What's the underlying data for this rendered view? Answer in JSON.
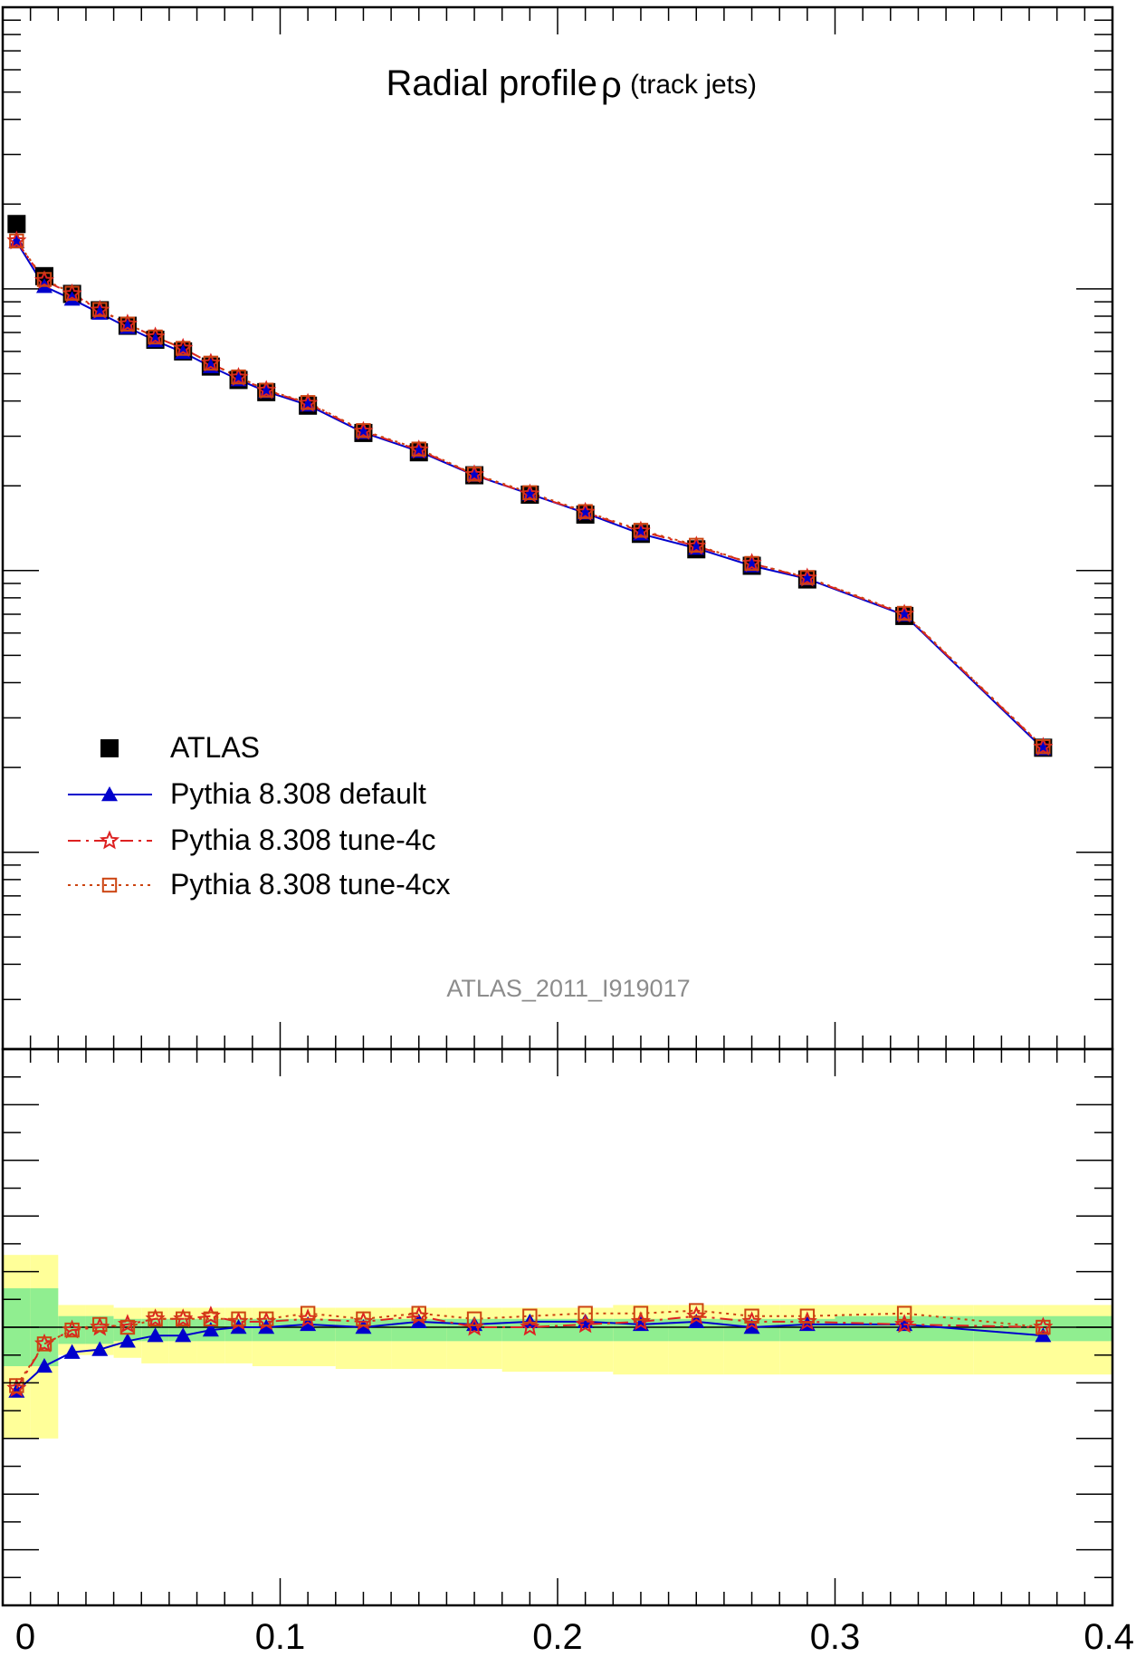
{
  "chart_data": [
    {
      "type": "line",
      "panel": "main",
      "title": "Radial profile",
      "title_symbol": "ρ",
      "subtitle": "(track jets)",
      "annotation": "ATLAS_2011_I919017",
      "xlabel": "",
      "ylabel": "",
      "xlim": [
        0,
        0.4
      ],
      "y_scale": "log",
      "ylim": [
        0.02,
        100
      ],
      "legend_placement": "lower-left",
      "x": [
        0.005,
        0.015,
        0.025,
        0.035,
        0.045,
        0.055,
        0.065,
        0.075,
        0.085,
        0.095,
        0.11,
        0.13,
        0.15,
        0.17,
        0.19,
        0.21,
        0.23,
        0.25,
        0.27,
        0.29,
        0.325,
        0.375
      ],
      "series": [
        {
          "name": "ATLAS",
          "color": "#000000",
          "marker": "filled-square",
          "line": "none",
          "values": [
            17.0,
            11.1,
            9.6,
            8.4,
            7.4,
            6.6,
            6.0,
            5.3,
            4.75,
            4.3,
            3.85,
            3.08,
            2.63,
            2.18,
            1.86,
            1.58,
            1.35,
            1.19,
            1.04,
            0.93,
            0.69,
            0.235
          ]
        },
        {
          "name": "Pythia 8.308 default",
          "color": "#0000cc",
          "marker": "filled-triangle",
          "line": "solid",
          "values": [
            14.7,
            10.2,
            9.2,
            8.2,
            7.3,
            6.55,
            5.95,
            5.3,
            4.76,
            4.32,
            3.87,
            3.09,
            2.65,
            2.18,
            1.87,
            1.6,
            1.35,
            1.2,
            1.04,
            0.935,
            0.695,
            0.233
          ]
        },
        {
          "name": "Pythia 8.308 tune-4c",
          "color": "#dd2222",
          "marker": "open-star",
          "line": "dashdot",
          "values": [
            14.8,
            10.7,
            9.6,
            8.4,
            7.5,
            6.75,
            6.15,
            5.45,
            4.85,
            4.36,
            3.92,
            3.12,
            2.68,
            2.19,
            1.87,
            1.61,
            1.38,
            1.22,
            1.06,
            0.94,
            0.7,
            0.236
          ]
        },
        {
          "name": "Pythia 8.308 tune-4cx",
          "color": "#cc4411",
          "marker": "open-square",
          "line": "dotted",
          "values": [
            14.8,
            10.8,
            9.65,
            8.45,
            7.5,
            6.75,
            6.15,
            5.45,
            4.87,
            4.37,
            3.95,
            3.14,
            2.7,
            2.2,
            1.89,
            1.62,
            1.39,
            1.23,
            1.06,
            0.945,
            0.705,
            0.237
          ]
        }
      ]
    },
    {
      "type": "line",
      "panel": "ratio",
      "xlabel": "",
      "ylabel": "",
      "xlim": [
        0,
        0.4
      ],
      "ylim": [
        0.5,
        1.5
      ],
      "x_tick_labels": [
        "0",
        "0.1",
        "0.2",
        "0.3",
        "0.4"
      ],
      "x_tick_values": [
        0,
        0.1,
        0.2,
        0.3,
        0.4
      ],
      "x": [
        0.005,
        0.015,
        0.025,
        0.035,
        0.045,
        0.055,
        0.065,
        0.075,
        0.085,
        0.095,
        0.11,
        0.13,
        0.15,
        0.17,
        0.19,
        0.21,
        0.23,
        0.25,
        0.27,
        0.29,
        0.325,
        0.375
      ],
      "band_bins": [
        0,
        0.01,
        0.02,
        0.03,
        0.04,
        0.05,
        0.06,
        0.07,
        0.08,
        0.09,
        0.1,
        0.12,
        0.14,
        0.16,
        0.18,
        0.2,
        0.22,
        0.24,
        0.26,
        0.28,
        0.3,
        0.35,
        0.4
      ],
      "band_inner": {
        "color": "#90ee90",
        "low": [
          0.93,
          0.93,
          0.97,
          0.97,
          0.975,
          0.975,
          0.975,
          0.975,
          0.975,
          0.975,
          0.975,
          0.975,
          0.975,
          0.975,
          0.975,
          0.975,
          0.975,
          0.975,
          0.975,
          0.975,
          0.975,
          0.975
        ],
        "high": [
          1.07,
          1.07,
          1.02,
          1.02,
          1.015,
          1.015,
          1.015,
          1.015,
          1.015,
          1.015,
          1.015,
          1.015,
          1.015,
          1.015,
          1.015,
          1.015,
          1.015,
          1.015,
          1.015,
          1.015,
          1.02,
          1.02
        ]
      },
      "band_outer": {
        "color": "#ffff99",
        "low": [
          0.8,
          0.8,
          0.95,
          0.95,
          0.945,
          0.935,
          0.935,
          0.935,
          0.935,
          0.93,
          0.93,
          0.925,
          0.925,
          0.925,
          0.92,
          0.92,
          0.915,
          0.915,
          0.915,
          0.915,
          0.915,
          0.915
        ],
        "high": [
          1.13,
          1.13,
          1.04,
          1.04,
          1.035,
          1.035,
          1.035,
          1.035,
          1.035,
          1.035,
          1.035,
          1.035,
          1.035,
          1.035,
          1.035,
          1.035,
          1.04,
          1.04,
          1.04,
          1.04,
          1.04,
          1.04
        ]
      },
      "series": [
        {
          "name": "Pythia 8.308 default",
          "color": "#0000cc",
          "values": [
            0.885,
            0.93,
            0.955,
            0.96,
            0.975,
            0.985,
            0.985,
            0.995,
            1.0,
            1.0,
            1.005,
            1.0,
            1.01,
            1.005,
            1.01,
            1.01,
            1.005,
            1.01,
            1.0,
            1.005,
            1.005,
            0.985
          ]
        },
        {
          "name": "Pythia 8.308 tune-4c",
          "color": "#dd2222",
          "values": [
            0.89,
            0.97,
            0.995,
            1.0,
            1.005,
            1.015,
            1.015,
            1.02,
            1.01,
            1.01,
            1.015,
            1.01,
            1.02,
            1.0,
            1.0,
            1.005,
            1.01,
            1.02,
            1.01,
            1.01,
            1.005,
            1.0
          ]
        },
        {
          "name": "Pythia 8.308 tune-4cx",
          "color": "#cc4411",
          "values": [
            0.895,
            0.97,
            0.995,
            1.005,
            1.0,
            1.015,
            1.015,
            1.015,
            1.015,
            1.015,
            1.025,
            1.015,
            1.025,
            1.015,
            1.02,
            1.025,
            1.025,
            1.03,
            1.02,
            1.02,
            1.025,
            1.0
          ]
        }
      ]
    }
  ]
}
